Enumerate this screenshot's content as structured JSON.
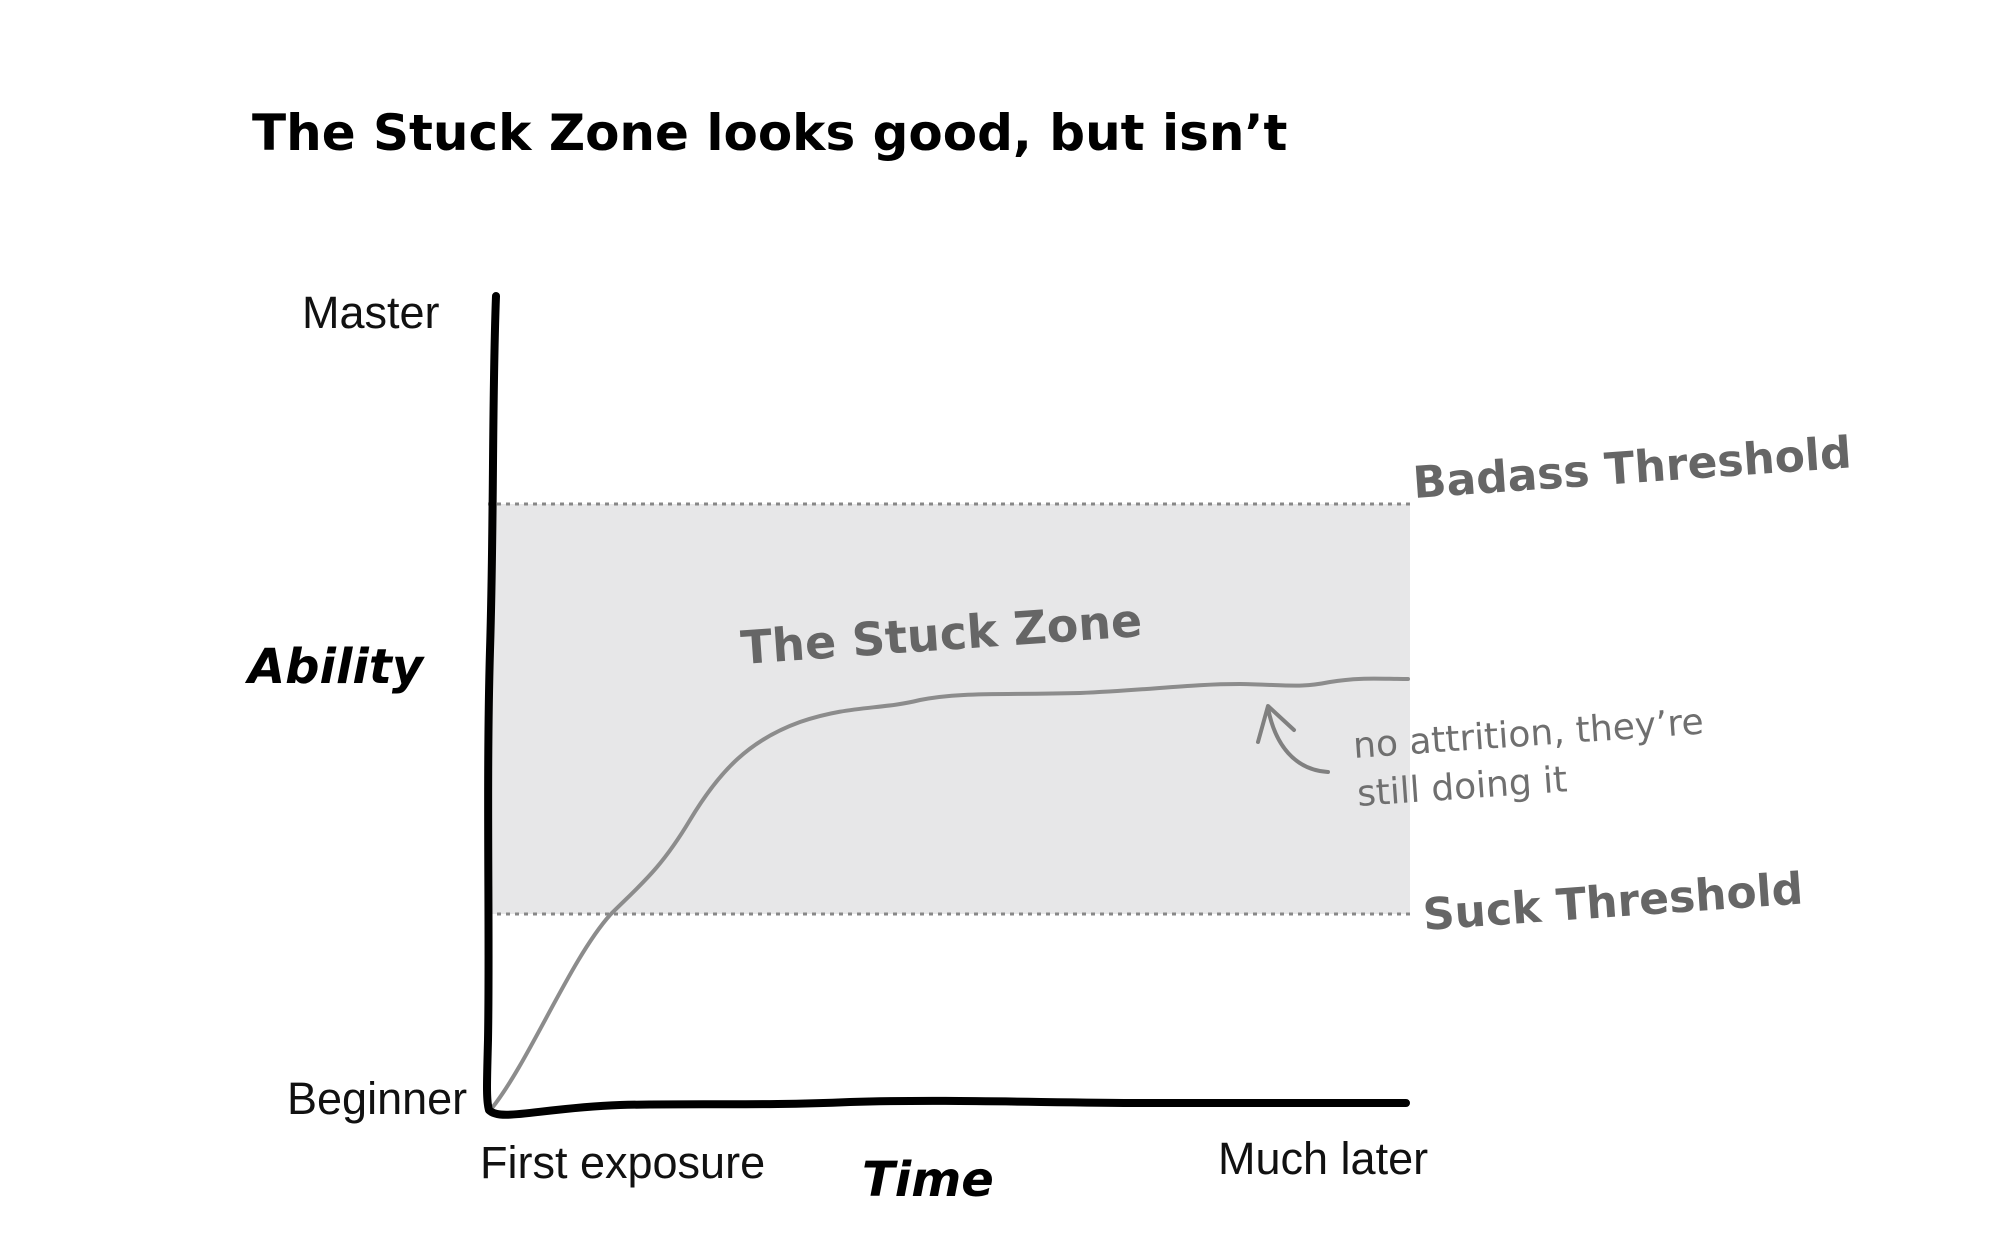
{
  "title": "The Stuck Zone looks good, but isn’t",
  "axes": {
    "y_title": "Ability",
    "y_top_label": "Master",
    "y_bottom_label": "Beginner",
    "x_title": "Time",
    "x_start_label": "First exposure",
    "x_end_label": "Much later"
  },
  "thresholds": {
    "upper": "Badass Threshold",
    "lower": "Suck Threshold"
  },
  "zone_label": "The Stuck Zone",
  "annotation": {
    "line1": "no attrition, they’re",
    "line2": "still doing it"
  },
  "colors": {
    "axis": "#000000",
    "zone_fill": "#e7e7e8",
    "curve": "#8c8c8c",
    "threshold_line": "#888888",
    "handwriting": "#666666"
  }
}
